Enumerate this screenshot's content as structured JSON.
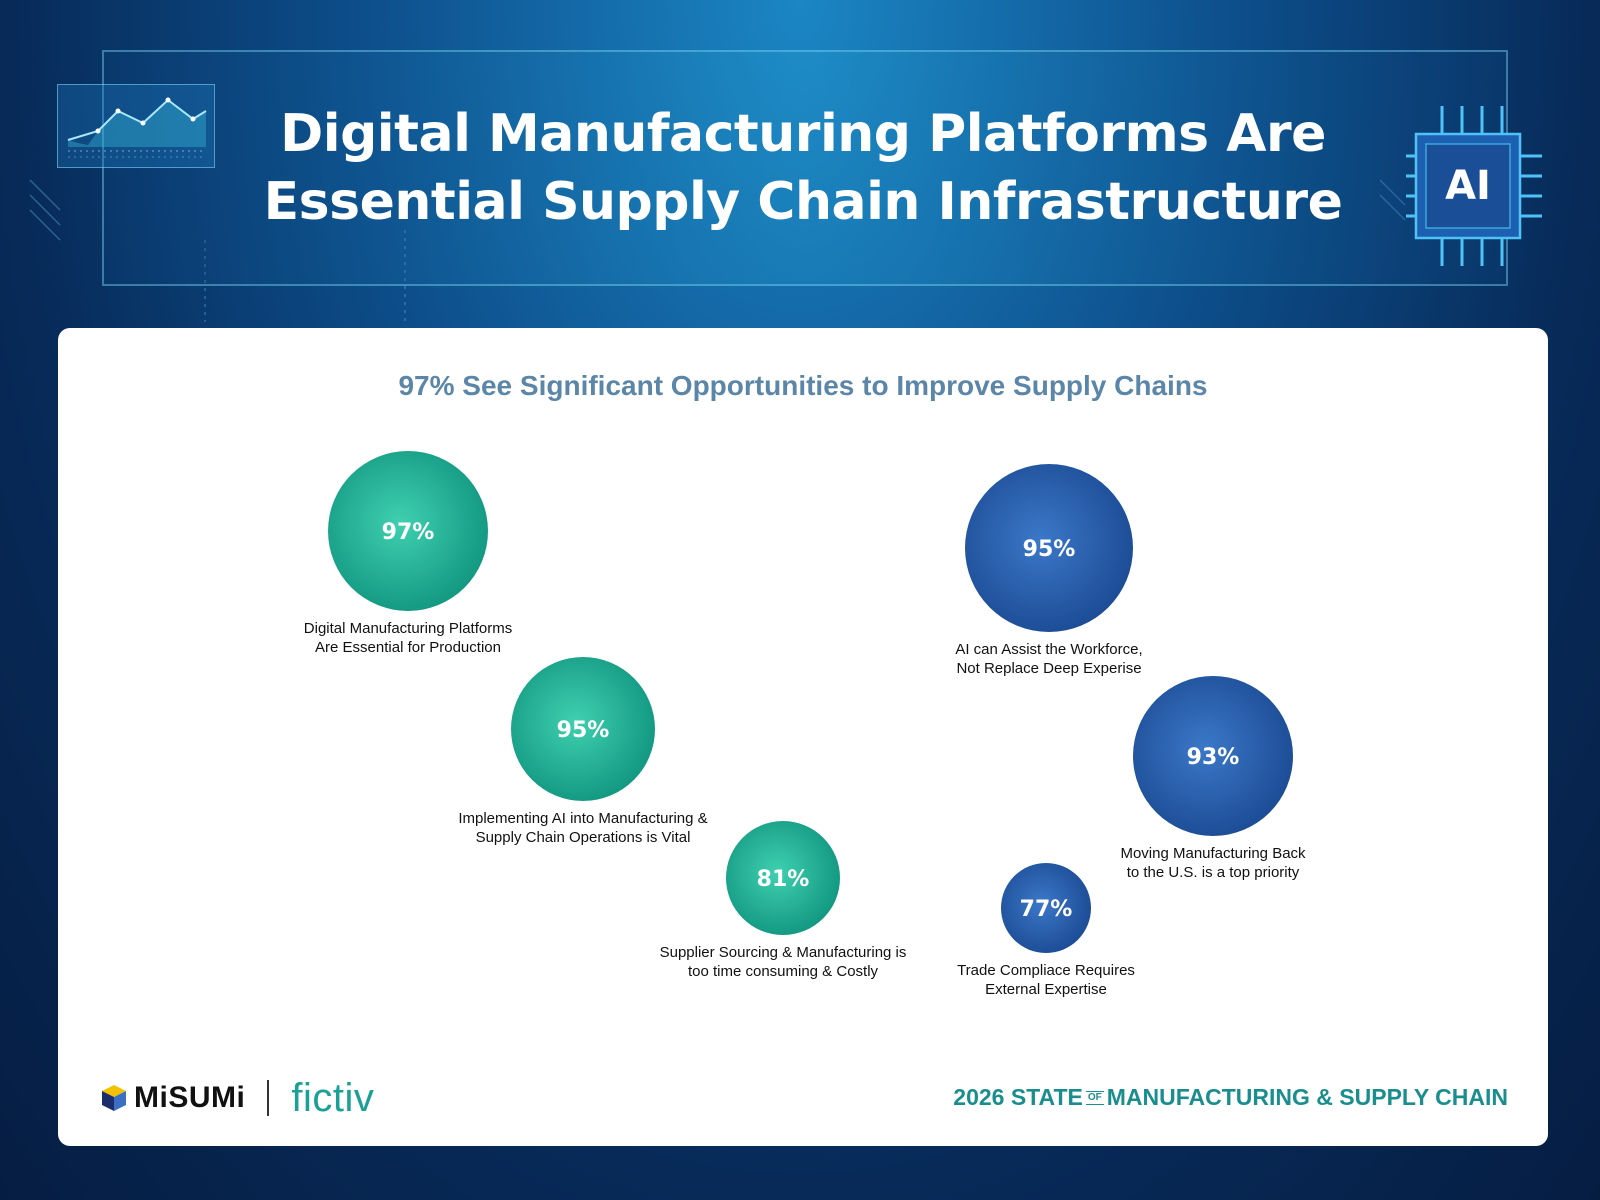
{
  "header": {
    "title_line1": "Digital Manufacturing Platforms Are",
    "title_line2": "Essential Supply Chain Infrastructure",
    "chip_label": "AI"
  },
  "card": {
    "subtitle": "97% See Significant Opportunities to Improve Supply Chains"
  },
  "chart_data": {
    "type": "bubble",
    "title": "97% See Significant Opportunities to Improve Supply Chains",
    "series": [
      {
        "name": "teal",
        "color": "#1fae93",
        "points": [
          {
            "value": 97,
            "label": "97%",
            "caption": [
              "Digital Manufacturing Platforms",
              "Are Essential for Production"
            ]
          },
          {
            "value": 95,
            "label": "95%",
            "caption": [
              "Implementing AI into Manufacturing &",
              "Supply Chain Operations is Vital"
            ]
          },
          {
            "value": 81,
            "label": "81%",
            "caption": [
              "Supplier Sourcing & Manufacturing is",
              "too time consuming & Costly"
            ]
          }
        ]
      },
      {
        "name": "blue",
        "color": "#2358a6",
        "points": [
          {
            "value": 95,
            "label": "95%",
            "caption": [
              "AI can Assist the Workforce,",
              "Not Replace Deep Experise"
            ]
          },
          {
            "value": 93,
            "label": "93%",
            "caption": [
              "Moving Manufacturing Back",
              "to the U.S. is a top priority"
            ]
          },
          {
            "value": 77,
            "label": "77%",
            "caption": [
              "Trade Compliace Requires",
              "External Expertise"
            ]
          }
        ]
      }
    ]
  },
  "footer": {
    "brand1": "MiSUMi",
    "brand2": "fictiv",
    "report_part1": "2026 STATE",
    "report_of": "OF",
    "report_part2": "MANUFACTURING & SUPPLY CHAIN"
  }
}
